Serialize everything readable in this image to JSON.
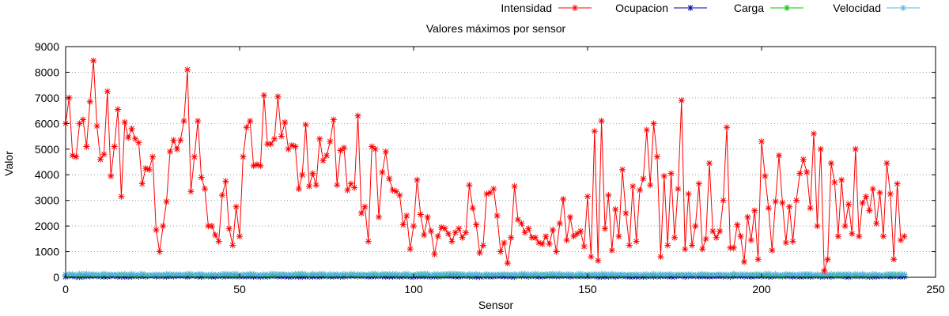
{
  "chart_data": {
    "type": "line",
    "title": "Valores máximos por sensor",
    "xlabel": "Sensor",
    "ylabel": "Valor",
    "xlim": [
      0,
      250
    ],
    "ylim": [
      0,
      9000
    ],
    "xticks": [
      "0",
      "50",
      "100",
      "150",
      "200",
      "250"
    ],
    "yticks": [
      "0",
      "1000",
      "2000",
      "3000",
      "4000",
      "5000",
      "6000",
      "7000",
      "8000",
      "9000"
    ],
    "grid": "y-dotted",
    "legend_position": "top",
    "series": [
      {
        "name": "Intensidad",
        "color": "#ff0000",
        "marker": "asterisk",
        "line": true,
        "values": [
          6000,
          7000,
          4750,
          4700,
          6000,
          6150,
          5100,
          6850,
          8450,
          5900,
          4600,
          4800,
          7250,
          3950,
          5100,
          6550,
          3150,
          6050,
          5450,
          5800,
          5400,
          5250,
          3650,
          4250,
          4200,
          4700,
          1850,
          1000,
          2000,
          2950,
          4900,
          5350,
          5000,
          5350,
          6100,
          8100,
          3350,
          4700,
          6100,
          3900,
          3450,
          2000,
          2000,
          1650,
          1400,
          3200,
          3750,
          1900,
          1250,
          2750,
          1600,
          4700,
          5850,
          6100,
          4350,
          4400,
          4350,
          7100,
          5200,
          5200,
          5400,
          7050,
          5500,
          6050,
          5000,
          5150,
          5100,
          3450,
          4000,
          5950,
          3550,
          4050,
          3600,
          5400,
          4550,
          4750,
          5300,
          6150,
          3600,
          4950,
          5050,
          3400,
          3650,
          3500,
          6300,
          2500,
          2750,
          1400,
          5100,
          5000,
          2350,
          4100,
          4900,
          3850,
          3400,
          3350,
          3200,
          2050,
          2400,
          1100,
          2000,
          3800,
          2450,
          1650,
          2350,
          1800,
          900,
          1600,
          1950,
          1900,
          1700,
          1400,
          1750,
          1900,
          1550,
          1750,
          3600,
          2700,
          2050,
          950,
          1250,
          3250,
          3300,
          3450,
          2400,
          1000,
          1350,
          550,
          1550,
          3550,
          2250,
          2100,
          1750,
          1900,
          1550,
          1550,
          1350,
          1300,
          1600,
          1300,
          1850,
          1000,
          2100,
          3050,
          1450,
          2350,
          1600,
          1700,
          1800,
          1200,
          3150,
          800,
          5700,
          650,
          6100,
          1900,
          3200,
          1050,
          2650,
          1600,
          4200,
          2500,
          1250,
          3550,
          1400,
          3400,
          3850,
          5750,
          3600,
          6000,
          4700,
          800,
          3950,
          1250,
          4050,
          1550,
          3450,
          6900,
          1100,
          3250,
          1250,
          2000,
          3650,
          1100,
          1500,
          4450,
          1800,
          1550,
          1800,
          3000,
          5850,
          1150,
          1150,
          2050,
          1600,
          600,
          2350,
          1450,
          2600,
          700,
          5300,
          3950,
          2700,
          1050,
          2950,
          4750,
          2900,
          1350,
          2750,
          1400,
          3000,
          4050,
          4600,
          4100,
          2700,
          5600,
          2000,
          5000,
          250,
          700,
          4450,
          3700,
          1600,
          3800,
          2000,
          2850,
          1700,
          5000,
          1600,
          2900,
          3150,
          2600,
          3450,
          2100,
          3300,
          1600,
          4450,
          3250,
          700,
          3650,
          1450,
          1600
        ]
      },
      {
        "name": "Ocupacion",
        "color": "#0000a0",
        "marker": "asterisk",
        "line": true,
        "typical_range": [
          20,
          60
        ]
      },
      {
        "name": "Carga",
        "color": "#00c800",
        "marker": "asterisk",
        "line": false,
        "typical_range": [
          60,
          110
        ]
      },
      {
        "name": "Velocidad",
        "color": "#5ab4e6",
        "marker": "asterisk",
        "line": false,
        "typical_range": [
          80,
          140
        ]
      }
    ]
  }
}
